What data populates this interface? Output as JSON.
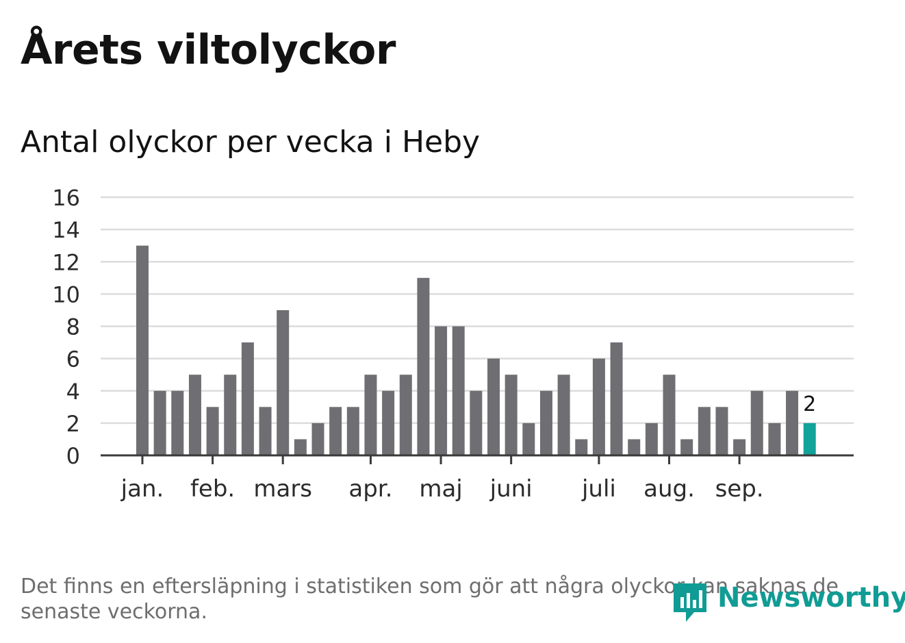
{
  "header": {
    "title": "Årets viltolyckor",
    "subtitle": "Antal olyckor per vecka i Heby"
  },
  "colors": {
    "bar": "#6f6e73",
    "highlight": "#12a39a",
    "grid": "#dcdcdc",
    "axis": "#3a3a3a",
    "text": "#121212",
    "muted": "#6e6e70",
    "brand": "#109c94"
  },
  "chart_data": {
    "type": "bar",
    "title": "Antal olyckor per vecka i Heby",
    "xlabel": "",
    "ylabel": "",
    "ylim": [
      0,
      16
    ],
    "yticks": [
      0,
      2,
      4,
      6,
      8,
      10,
      12,
      14,
      16
    ],
    "grid": true,
    "month_labels": [
      {
        "label": "jan.",
        "bar_index": 0
      },
      {
        "label": "feb.",
        "bar_index": 4
      },
      {
        "label": "mars",
        "bar_index": 8
      },
      {
        "label": "apr.",
        "bar_index": 13
      },
      {
        "label": "maj",
        "bar_index": 17
      },
      {
        "label": "juni",
        "bar_index": 21
      },
      {
        "label": "juli",
        "bar_index": 26
      },
      {
        "label": "aug.",
        "bar_index": 30
      },
      {
        "label": "sep.",
        "bar_index": 34
      }
    ],
    "values": [
      13,
      4,
      4,
      5,
      3,
      5,
      7,
      3,
      9,
      1,
      2,
      3,
      3,
      5,
      4,
      5,
      11,
      8,
      8,
      4,
      6,
      5,
      2,
      4,
      5,
      1,
      6,
      7,
      1,
      2,
      5,
      1,
      3,
      3,
      1,
      4,
      2,
      4,
      2
    ],
    "highlight_index": 38,
    "highlight_label": "2"
  },
  "footer": {
    "note": "Det finns en eftersläpning i statistiken som gör att några olyckor kan saknas de senaste veckorna.",
    "brand": "Newsworthy",
    "brand_icon": "newsworthy-logo-icon"
  }
}
